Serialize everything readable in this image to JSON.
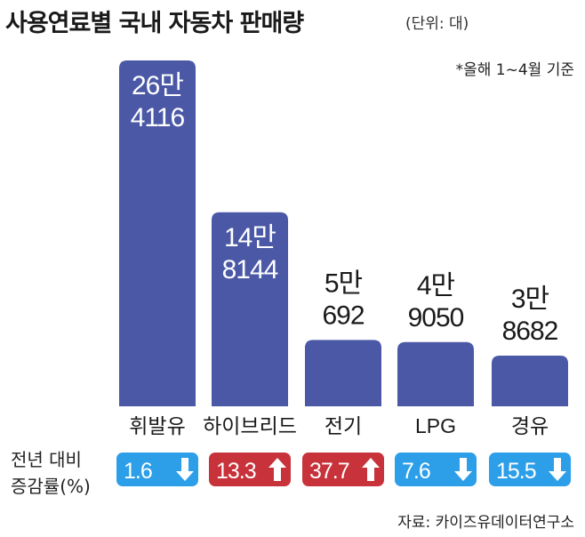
{
  "title": "사용연료별 국내 자동차 판매량",
  "unit": "(단위: 대)",
  "note": "*올해 1~4월 기준",
  "source": "자료: 카이즈유데이터연구소",
  "change_label_line1": "전년 대비",
  "change_label_line2": "증감률(%)",
  "colors": {
    "bar": "#4a58a6",
    "down": "#2d9ee8",
    "up": "#c8323a",
    "bar_label_inside": "#ffffff",
    "text": "#1a1a1a"
  },
  "chart_data": {
    "type": "bar",
    "categories": [
      "휘발유",
      "하이브리드",
      "전기",
      "LPG",
      "경유"
    ],
    "values": [
      264116,
      148144,
      50692,
      49050,
      38682
    ],
    "value_labels": [
      [
        "26만",
        "4116"
      ],
      [
        "14만",
        "8144"
      ],
      [
        "5만",
        "692"
      ],
      [
        "4만",
        "9050"
      ],
      [
        "3만",
        "8682"
      ]
    ],
    "change_pct": [
      {
        "label": "1.6",
        "direction": "down"
      },
      {
        "label": "13.3",
        "direction": "up"
      },
      {
        "label": "37.7",
        "direction": "up"
      },
      {
        "label": "7.6",
        "direction": "down"
      },
      {
        "label": "15.5",
        "direction": "down"
      }
    ],
    "ylim": [
      0,
      264116
    ],
    "title": "사용연료별 국내 자동차 판매량",
    "xlabel": "",
    "ylabel": "",
    "grid": false,
    "legend": "none"
  }
}
